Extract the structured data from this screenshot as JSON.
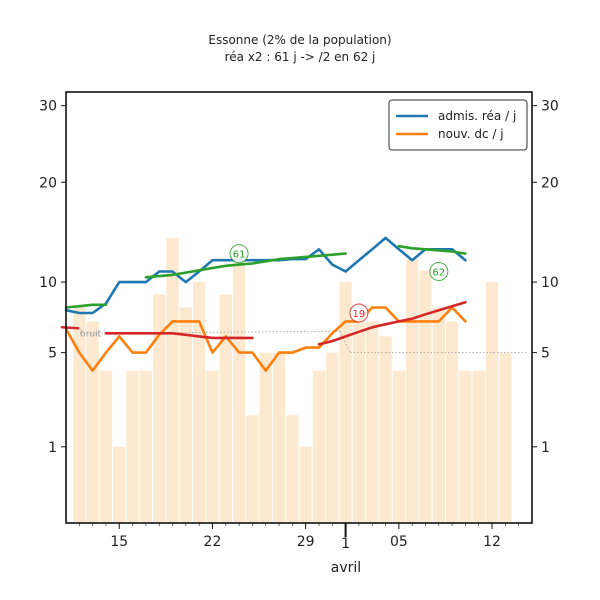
{
  "chart_data": {
    "type": "line",
    "title": "Essonne (2% de la population)",
    "subtitle": "réa x2 : 61 j -> /2 en 62 j",
    "xlabel": "avril",
    "ylabel": "",
    "x_ticks": [
      {
        "date": "03-15",
        "label": "15"
      },
      {
        "date": "03-22",
        "label": "22"
      },
      {
        "date": "03-29",
        "label": "29"
      },
      {
        "date": "04-01",
        "label": "1"
      },
      {
        "date": "04-05",
        "label": "05"
      },
      {
        "date": "04-12",
        "label": "12"
      }
    ],
    "xlim": [
      "03-11",
      "04-15"
    ],
    "y_ticks": [
      {
        "value": 1,
        "label": "1"
      },
      {
        "value": 5,
        "label": "5"
      },
      {
        "value": 10,
        "label": "10"
      },
      {
        "value": 20,
        "label": "20"
      },
      {
        "value": 30,
        "label": "30"
      }
    ],
    "y_scale": "sqrt",
    "ylim": [
      0,
      32
    ],
    "legend": {
      "position": "top-right",
      "entries": [
        {
          "label": "admis. réa / j",
          "color": "#1f77b4"
        },
        {
          "label": "nouv. dc / j",
          "color": "#ff7f0e"
        }
      ]
    },
    "bars": {
      "color": "#fde9cf",
      "dates": [
        "03-12",
        "03-13",
        "03-14",
        "03-15",
        "03-16",
        "03-17",
        "03-18",
        "03-19",
        "03-20",
        "03-21",
        "03-22",
        "03-23",
        "03-24",
        "03-25",
        "03-26",
        "03-27",
        "03-28",
        "03-29",
        "03-30",
        "03-31",
        "04-01",
        "04-02",
        "04-03",
        "04-04",
        "04-05",
        "04-06",
        "04-07",
        "04-08",
        "04-09",
        "04-10",
        "04-11",
        "04-12",
        "04-13"
      ],
      "values": [
        8,
        7,
        4,
        1,
        4,
        4,
        9,
        14,
        8,
        10,
        4,
        9,
        12,
        2,
        5,
        5,
        2,
        1,
        4,
        5,
        10,
        7,
        7,
        6,
        4,
        12,
        11,
        8,
        7,
        4,
        4,
        10,
        5
      ]
    },
    "series": [
      {
        "name": "admis. réa / j",
        "color": "#1f77b4",
        "x": [
          "03-11",
          "03-12",
          "03-13",
          "03-14",
          "03-15",
          "03-16",
          "03-17",
          "03-18",
          "03-19",
          "03-20",
          "03-21",
          "03-22",
          "03-23",
          "03-24",
          "03-25",
          "03-26",
          "03-27",
          "03-28",
          "03-29",
          "03-30",
          "03-31",
          "04-01",
          "04-02",
          "04-03",
          "04-04",
          "04-05",
          "04-06",
          "04-07",
          "04-08",
          "04-09",
          "04-10"
        ],
        "y": [
          7.8,
          7.6,
          7.6,
          8.3,
          10,
          10,
          10,
          10.9,
          10.9,
          10,
          10.9,
          11.9,
          11.9,
          11.9,
          11.9,
          11.9,
          11.9,
          12,
          12,
          12.9,
          11.5,
          10.9,
          11.9,
          12.9,
          14,
          12.9,
          11.9,
          12.9,
          12.9,
          12.9,
          11.9
        ]
      },
      {
        "name": "nouv. dc / j",
        "color": "#ff7f0e",
        "x": [
          "03-11",
          "03-12",
          "03-13",
          "03-14",
          "03-15",
          "03-16",
          "03-17",
          "03-18",
          "03-19",
          "03-20",
          "03-21",
          "03-22",
          "03-23",
          "03-24",
          "03-25",
          "03-26",
          "03-27",
          "03-28",
          "03-29",
          "03-30",
          "03-31",
          "04-01",
          "04-02",
          "04-03",
          "04-04",
          "04-05",
          "04-06",
          "04-07",
          "04-08",
          "04-09",
          "04-10"
        ],
        "y": [
          6.5,
          5,
          4,
          5,
          6,
          5,
          5,
          6.1,
          7,
          7,
          7,
          5,
          6,
          5,
          5,
          4,
          5,
          5,
          5.3,
          5.3,
          6.2,
          7,
          7,
          8,
          8,
          7,
          7,
          7,
          7,
          8,
          7
        ]
      },
      {
        "color": "#2ca02c",
        "segments": [
          {
            "x": [
              "03-11",
              "03-12",
              "03-13",
              "03-14"
            ],
            "y": [
              8,
              8.1,
              8.2,
              8.2
            ]
          },
          {
            "x": [
              "03-17",
              "03-18",
              "03-19",
              "03-20",
              "03-21",
              "03-22",
              "03-23",
              "03-24",
              "03-25",
              "03-26",
              "03-27",
              "03-28",
              "03-29",
              "03-30",
              "03-31",
              "04-01"
            ],
            "y": [
              10.4,
              10.5,
              10.6,
              10.8,
              11,
              11.2,
              11.4,
              11.5,
              11.6,
              11.8,
              12,
              12.1,
              12.2,
              12.3,
              12.4,
              12.5
            ]
          },
          {
            "x": [
              "04-05",
              "04-06",
              "04-07",
              "04-08",
              "04-09",
              "04-10"
            ],
            "y": [
              13.2,
              13,
              12.9,
              12.8,
              12.7,
              12.5
            ]
          }
        ]
      },
      {
        "color": "#d62728",
        "segments": [
          {
            "x": [
              "03-11"
            ],
            "y": [
              6.6
            ]
          },
          {
            "x": [
              "03-14",
              "03-15",
              "03-16",
              "03-17",
              "03-18",
              "03-19",
              "03-20",
              "03-21",
              "03-22",
              "03-23",
              "03-24",
              "03-25"
            ],
            "y": [
              6.2,
              6.2,
              6.2,
              6.2,
              6.2,
              6.2,
              6.1,
              6,
              5.9,
              5.9,
              5.9,
              5.9
            ]
          },
          {
            "x": [
              "03-30",
              "03-31",
              "04-01",
              "04-02",
              "04-03",
              "04-04",
              "04-05",
              "04-06",
              "04-07",
              "04-08",
              "04-09",
              "04-10"
            ],
            "y": [
              5.5,
              5.7,
              6,
              6.3,
              6.6,
              6.8,
              7,
              7.2,
              7.5,
              7.8,
              8.1,
              8.4
            ]
          }
        ]
      }
    ],
    "noise_line": {
      "label": "bruit",
      "value": 6.2
    },
    "noise_line_2": {
      "value": 5
    },
    "annotations": [
      {
        "text": "61",
        "x": "03-24",
        "y": 12.5,
        "color": "#2ca02c"
      },
      {
        "text": "62",
        "x": "04-08",
        "y": 10.9,
        "color": "#2ca02c"
      },
      {
        "text": "19",
        "x": "04-02",
        "y": 7.6,
        "color": "#d62728"
      }
    ]
  }
}
